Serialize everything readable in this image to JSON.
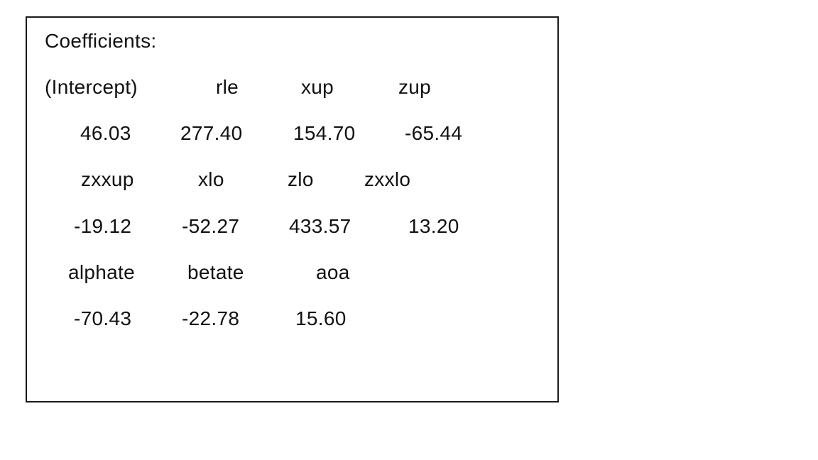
{
  "title": "Coefficients:",
  "rows": [
    {
      "kind": "names",
      "items": [
        "(Intercept)",
        "rle",
        "xup",
        "zup"
      ]
    },
    {
      "kind": "values",
      "items": [
        "46.03",
        "277.40",
        "154.70",
        "-65.44"
      ]
    },
    {
      "kind": "names",
      "items": [
        "zxxup",
        "xlo",
        "zlo",
        "zxxlo"
      ]
    },
    {
      "kind": "values",
      "items": [
        "-19.12",
        "-52.27",
        "433.57",
        "13.20"
      ]
    },
    {
      "kind": "names",
      "items": [
        "alphate",
        "betate",
        "aoa"
      ]
    },
    {
      "kind": "values",
      "items": [
        "-70.43",
        "-22.78",
        "15.60"
      ]
    }
  ]
}
